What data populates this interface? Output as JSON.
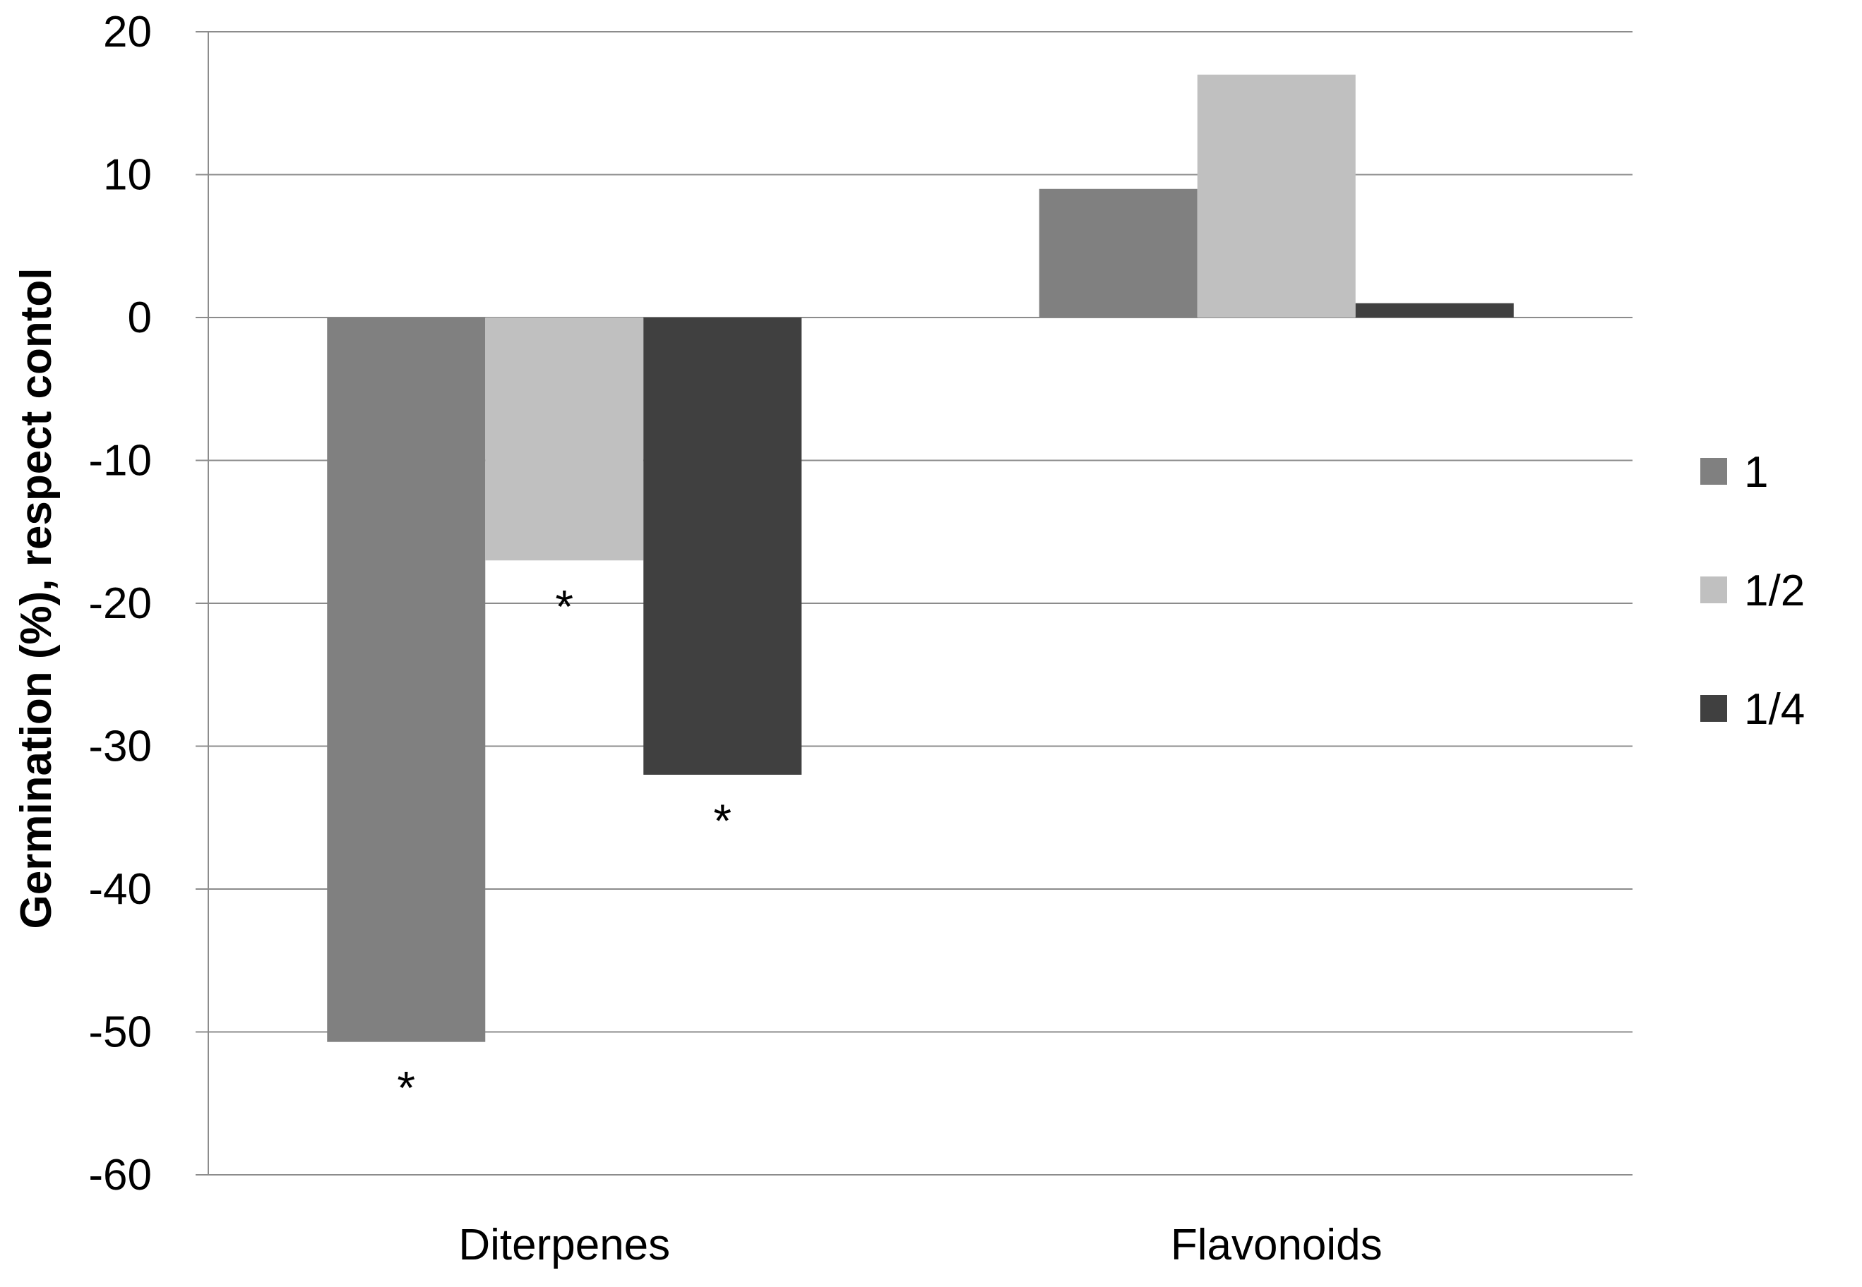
{
  "chart_data": {
    "type": "bar",
    "title": "",
    "xlabel": "",
    "ylabel": "Germination (%), respect contol",
    "ylim": [
      -60,
      20
    ],
    "yticks": [
      20,
      10,
      0,
      -10,
      -20,
      -30,
      -40,
      -50,
      -60
    ],
    "grid": true,
    "legend_position": "right",
    "categories": [
      "Diterpenes",
      "Flavonoids"
    ],
    "series": [
      {
        "name": "1",
        "color": "#808080",
        "values": [
          -50.7,
          9
        ],
        "significance": [
          "*",
          ""
        ]
      },
      {
        "name": "1/2",
        "color": "#c0c0c0",
        "values": [
          -17,
          17
        ],
        "significance": [
          "*",
          ""
        ]
      },
      {
        "name": "1/4",
        "color": "#404040",
        "values": [
          -32,
          1
        ],
        "significance": [
          "*",
          ""
        ]
      }
    ]
  }
}
